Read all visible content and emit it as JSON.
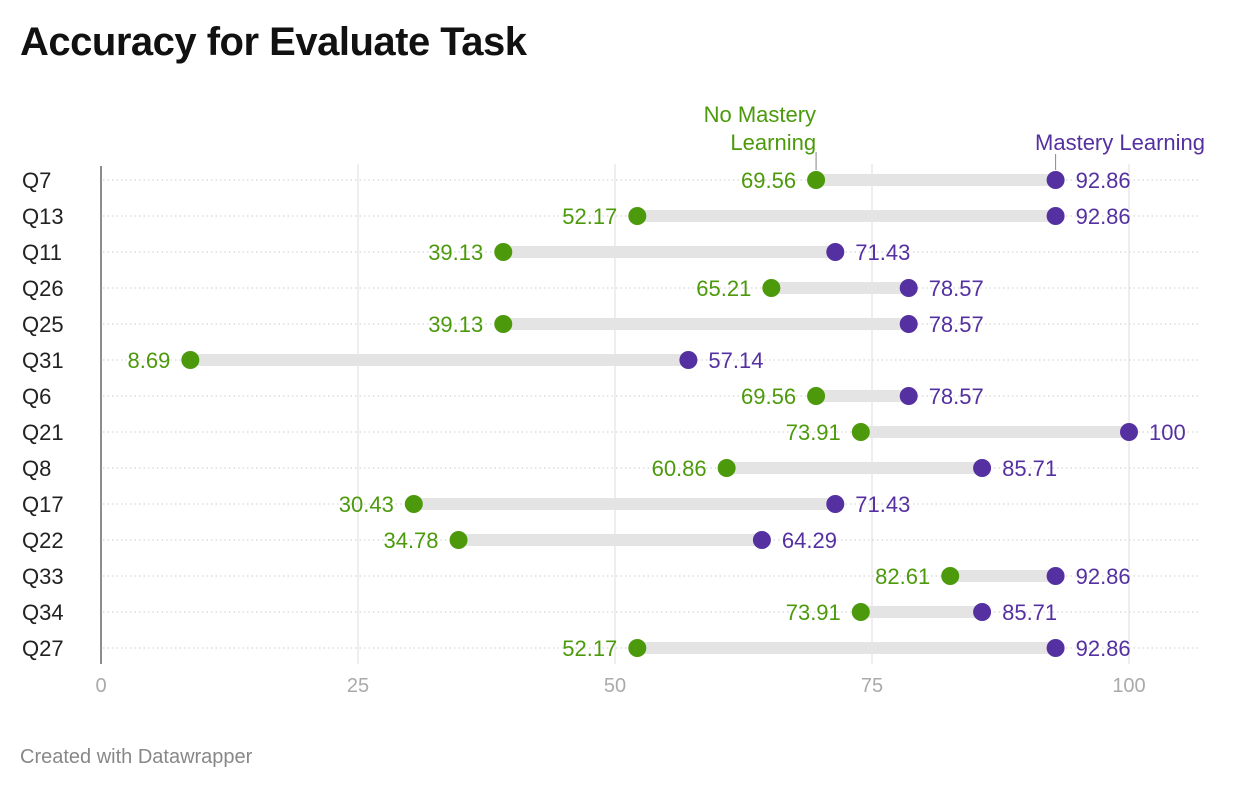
{
  "title": "Accuracy for Evaluate Task",
  "footer": "Created with Datawrapper",
  "chart_data": {
    "type": "dot-range",
    "title": "Accuracy for Evaluate Task",
    "categories": [
      "Q7",
      "Q13",
      "Q11",
      "Q26",
      "Q25",
      "Q31",
      "Q6",
      "Q21",
      "Q8",
      "Q17",
      "Q22",
      "Q33",
      "Q34",
      "Q27"
    ],
    "series": [
      {
        "name": "No Mastery Learning",
        "color": "#4c9a0c",
        "values": [
          69.56,
          52.17,
          39.13,
          65.21,
          39.13,
          8.69,
          69.56,
          73.91,
          60.86,
          30.43,
          34.78,
          82.61,
          73.91,
          52.17
        ],
        "labels": [
          "69.56",
          "52.17",
          "39.13",
          "65.21",
          "39.13",
          "8.69",
          "69.56",
          "73.91",
          "60.86",
          "30.43",
          "34.78",
          "82.61",
          "73.91",
          "52.17"
        ]
      },
      {
        "name": "Mastery Learning",
        "color": "#5530a0",
        "values": [
          92.86,
          92.86,
          71.43,
          78.57,
          78.57,
          57.14,
          78.57,
          100,
          85.71,
          71.43,
          64.29,
          92.86,
          85.71,
          92.86
        ],
        "labels": [
          "92.86",
          "92.86",
          "71.43",
          "78.57",
          "78.57",
          "57.14",
          "78.57",
          "100",
          "85.71",
          "71.43",
          "64.29",
          "92.86",
          "85.71",
          "92.86"
        ]
      }
    ],
    "legend_lines": {
      "No Mastery Learning": [
        "No Mastery",
        "Learning"
      ],
      "Mastery Learning": [
        "Mastery Learning"
      ]
    },
    "xlim": [
      0,
      100
    ],
    "xticks": [
      0,
      25,
      50,
      75,
      100
    ],
    "xtick_labels": [
      "0",
      "25",
      "50",
      "75",
      "100"
    ],
    "grid": true,
    "legend_placement": "annotations above first row"
  }
}
